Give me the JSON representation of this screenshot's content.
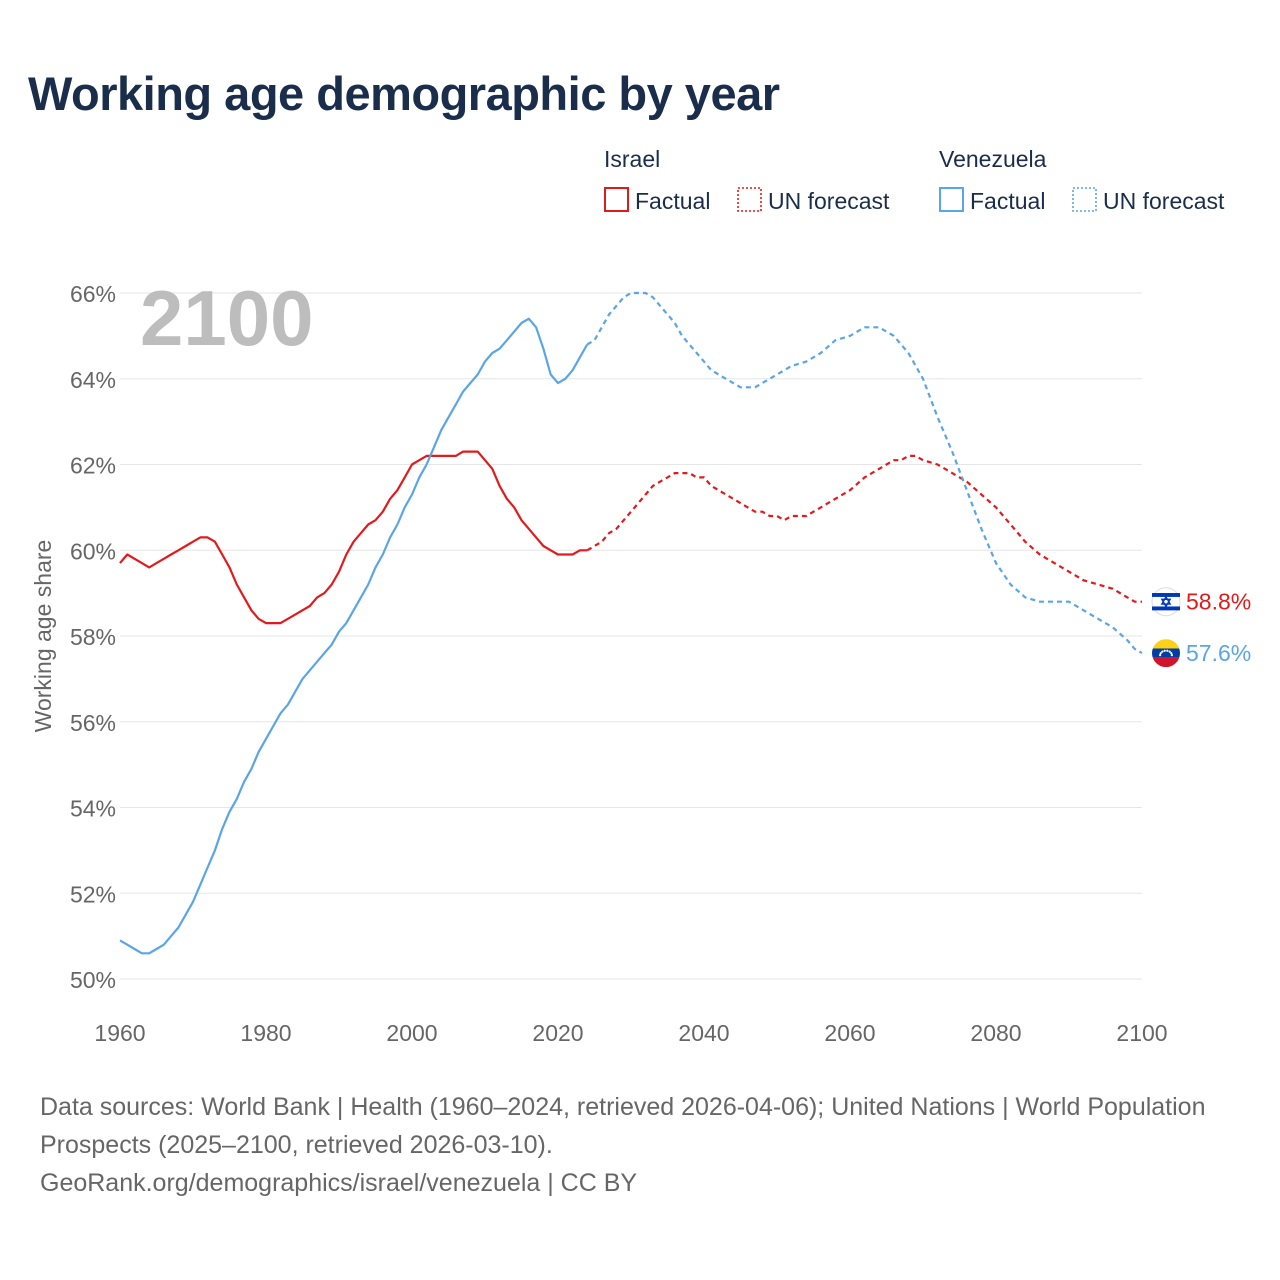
{
  "title": "Working age demographic by year",
  "year_label": "2100",
  "legend": {
    "groups": [
      {
        "name": "Israel",
        "color": "#e31a1c",
        "factual_label": "Factual",
        "forecast_label": "UN forecast"
      },
      {
        "name": "Venezuela",
        "color": "#5aa5e6",
        "factual_label": "Factual",
        "forecast_label": "UN forecast"
      }
    ]
  },
  "chart_data": {
    "type": "line",
    "title": "Working age demographic by year",
    "xlabel": "",
    "ylabel": "Working age share",
    "xlim": [
      1960,
      2100
    ],
    "ylim": [
      50,
      66
    ],
    "x_ticks": [
      1960,
      1980,
      2000,
      2020,
      2040,
      2060,
      2080,
      2100
    ],
    "y_ticks": [
      50,
      52,
      54,
      56,
      58,
      60,
      62,
      64,
      66
    ],
    "y_tick_labels": [
      "50%",
      "52%",
      "54%",
      "56%",
      "58%",
      "60%",
      "62%",
      "64%",
      "66%"
    ],
    "factual_until": 2024,
    "series": [
      {
        "name": "Israel",
        "color": "#e31a1c",
        "end_label": "58.8%",
        "flag": "israel",
        "points": [
          [
            1960,
            59.7
          ],
          [
            1961,
            59.9
          ],
          [
            1962,
            59.8
          ],
          [
            1963,
            59.7
          ],
          [
            1964,
            59.6
          ],
          [
            1965,
            59.7
          ],
          [
            1966,
            59.8
          ],
          [
            1967,
            59.9
          ],
          [
            1968,
            60.0
          ],
          [
            1969,
            60.1
          ],
          [
            1970,
            60.2
          ],
          [
            1971,
            60.3
          ],
          [
            1972,
            60.3
          ],
          [
            1973,
            60.2
          ],
          [
            1974,
            59.9
          ],
          [
            1975,
            59.6
          ],
          [
            1976,
            59.2
          ],
          [
            1977,
            58.9
          ],
          [
            1978,
            58.6
          ],
          [
            1979,
            58.4
          ],
          [
            1980,
            58.3
          ],
          [
            1982,
            58.3
          ],
          [
            1984,
            58.5
          ],
          [
            1986,
            58.7
          ],
          [
            1987,
            58.9
          ],
          [
            1988,
            59.0
          ],
          [
            1989,
            59.2
          ],
          [
            1990,
            59.5
          ],
          [
            1991,
            59.9
          ],
          [
            1992,
            60.2
          ],
          [
            1993,
            60.4
          ],
          [
            1994,
            60.6
          ],
          [
            1995,
            60.7
          ],
          [
            1996,
            60.9
          ],
          [
            1997,
            61.2
          ],
          [
            1998,
            61.4
          ],
          [
            1999,
            61.7
          ],
          [
            2000,
            62.0
          ],
          [
            2001,
            62.1
          ],
          [
            2002,
            62.2
          ],
          [
            2006,
            62.2
          ],
          [
            2007,
            62.3
          ],
          [
            2009,
            62.3
          ],
          [
            2010,
            62.1
          ],
          [
            2011,
            61.9
          ],
          [
            2012,
            61.5
          ],
          [
            2013,
            61.2
          ],
          [
            2014,
            61.0
          ],
          [
            2015,
            60.7
          ],
          [
            2016,
            60.5
          ],
          [
            2017,
            60.3
          ],
          [
            2018,
            60.1
          ],
          [
            2019,
            60.0
          ],
          [
            2020,
            59.9
          ],
          [
            2022,
            59.9
          ],
          [
            2023,
            60.0
          ],
          [
            2024,
            60.0
          ],
          [
            2025,
            60.1
          ],
          [
            2026,
            60.2
          ],
          [
            2027,
            60.4
          ],
          [
            2028,
            60.5
          ],
          [
            2029,
            60.7
          ],
          [
            2030,
            60.9
          ],
          [
            2031,
            61.1
          ],
          [
            2032,
            61.3
          ],
          [
            2033,
            61.5
          ],
          [
            2034,
            61.6
          ],
          [
            2035,
            61.7
          ],
          [
            2036,
            61.8
          ],
          [
            2038,
            61.8
          ],
          [
            2039,
            61.7
          ],
          [
            2040,
            61.7
          ],
          [
            2041,
            61.5
          ],
          [
            2042,
            61.4
          ],
          [
            2044,
            61.2
          ],
          [
            2046,
            61.0
          ],
          [
            2047,
            60.9
          ],
          [
            2048,
            60.9
          ],
          [
            2049,
            60.8
          ],
          [
            2050,
            60.8
          ],
          [
            2051,
            60.7
          ],
          [
            2052,
            60.8
          ],
          [
            2054,
            60.8
          ],
          [
            2056,
            61.0
          ],
          [
            2058,
            61.2
          ],
          [
            2060,
            61.4
          ],
          [
            2062,
            61.7
          ],
          [
            2064,
            61.9
          ],
          [
            2066,
            62.1
          ],
          [
            2067,
            62.1
          ],
          [
            2068,
            62.2
          ],
          [
            2069,
            62.2
          ],
          [
            2070,
            62.1
          ],
          [
            2072,
            62.0
          ],
          [
            2074,
            61.8
          ],
          [
            2076,
            61.6
          ],
          [
            2078,
            61.3
          ],
          [
            2080,
            61.0
          ],
          [
            2082,
            60.6
          ],
          [
            2084,
            60.2
          ],
          [
            2086,
            59.9
          ],
          [
            2088,
            59.7
          ],
          [
            2090,
            59.5
          ],
          [
            2092,
            59.3
          ],
          [
            2094,
            59.2
          ],
          [
            2096,
            59.1
          ],
          [
            2098,
            58.9
          ],
          [
            2099,
            58.8
          ],
          [
            2100,
            58.8
          ]
        ]
      },
      {
        "name": "Venezuela",
        "color": "#5aa5e6",
        "end_label": "57.6%",
        "flag": "venezuela",
        "points": [
          [
            1960,
            50.9
          ],
          [
            1961,
            50.8
          ],
          [
            1962,
            50.7
          ],
          [
            1963,
            50.6
          ],
          [
            1964,
            50.6
          ],
          [
            1965,
            50.7
          ],
          [
            1966,
            50.8
          ],
          [
            1967,
            51.0
          ],
          [
            1968,
            51.2
          ],
          [
            1969,
            51.5
          ],
          [
            1970,
            51.8
          ],
          [
            1971,
            52.2
          ],
          [
            1972,
            52.6
          ],
          [
            1973,
            53.0
          ],
          [
            1974,
            53.5
          ],
          [
            1975,
            53.9
          ],
          [
            1976,
            54.2
          ],
          [
            1977,
            54.6
          ],
          [
            1978,
            54.9
          ],
          [
            1979,
            55.3
          ],
          [
            1980,
            55.6
          ],
          [
            1981,
            55.9
          ],
          [
            1982,
            56.2
          ],
          [
            1983,
            56.4
          ],
          [
            1984,
            56.7
          ],
          [
            1985,
            57.0
          ],
          [
            1986,
            57.2
          ],
          [
            1987,
            57.4
          ],
          [
            1988,
            57.6
          ],
          [
            1989,
            57.8
          ],
          [
            1990,
            58.1
          ],
          [
            1991,
            58.3
          ],
          [
            1992,
            58.6
          ],
          [
            1993,
            58.9
          ],
          [
            1994,
            59.2
          ],
          [
            1995,
            59.6
          ],
          [
            1996,
            59.9
          ],
          [
            1997,
            60.3
          ],
          [
            1998,
            60.6
          ],
          [
            1999,
            61.0
          ],
          [
            2000,
            61.3
          ],
          [
            2001,
            61.7
          ],
          [
            2002,
            62.0
          ],
          [
            2003,
            62.4
          ],
          [
            2004,
            62.8
          ],
          [
            2005,
            63.1
          ],
          [
            2006,
            63.4
          ],
          [
            2007,
            63.7
          ],
          [
            2008,
            63.9
          ],
          [
            2009,
            64.1
          ],
          [
            2010,
            64.4
          ],
          [
            2011,
            64.6
          ],
          [
            2012,
            64.7
          ],
          [
            2013,
            64.9
          ],
          [
            2014,
            65.1
          ],
          [
            2015,
            65.3
          ],
          [
            2016,
            65.4
          ],
          [
            2017,
            65.2
          ],
          [
            2018,
            64.7
          ],
          [
            2019,
            64.1
          ],
          [
            2020,
            63.9
          ],
          [
            2021,
            64.0
          ],
          [
            2022,
            64.2
          ],
          [
            2023,
            64.5
          ],
          [
            2024,
            64.8
          ],
          [
            2025,
            64.9
          ],
          [
            2026,
            65.2
          ],
          [
            2027,
            65.5
          ],
          [
            2028,
            65.7
          ],
          [
            2029,
            65.9
          ],
          [
            2030,
            66.0
          ],
          [
            2031,
            66.0
          ],
          [
            2032,
            66.0
          ],
          [
            2033,
            65.9
          ],
          [
            2034,
            65.7
          ],
          [
            2035,
            65.5
          ],
          [
            2036,
            65.3
          ],
          [
            2037,
            65.0
          ],
          [
            2038,
            64.8
          ],
          [
            2039,
            64.6
          ],
          [
            2040,
            64.4
          ],
          [
            2041,
            64.2
          ],
          [
            2042,
            64.1
          ],
          [
            2043,
            64.0
          ],
          [
            2044,
            63.9
          ],
          [
            2045,
            63.8
          ],
          [
            2047,
            63.8
          ],
          [
            2048,
            63.9
          ],
          [
            2050,
            64.1
          ],
          [
            2052,
            64.3
          ],
          [
            2054,
            64.4
          ],
          [
            2056,
            64.6
          ],
          [
            2058,
            64.9
          ],
          [
            2060,
            65.0
          ],
          [
            2062,
            65.2
          ],
          [
            2064,
            65.2
          ],
          [
            2066,
            65.0
          ],
          [
            2068,
            64.6
          ],
          [
            2070,
            64.0
          ],
          [
            2072,
            63.1
          ],
          [
            2074,
            62.3
          ],
          [
            2076,
            61.4
          ],
          [
            2078,
            60.5
          ],
          [
            2080,
            59.7
          ],
          [
            2082,
            59.2
          ],
          [
            2084,
            58.9
          ],
          [
            2086,
            58.8
          ],
          [
            2090,
            58.8
          ],
          [
            2092,
            58.6
          ],
          [
            2094,
            58.4
          ],
          [
            2096,
            58.2
          ],
          [
            2098,
            57.9
          ],
          [
            2099,
            57.7
          ],
          [
            2100,
            57.6
          ]
        ]
      }
    ]
  },
  "sources": {
    "line1": "Data sources: World Bank | Health (1960–2024, retrieved 2026-04-06); United Nations | World Population Prospects (2025–2100, retrieved 2026-03-10).",
    "line2": "GeoRank.org/demographics/israel/venezuela | CC BY"
  }
}
